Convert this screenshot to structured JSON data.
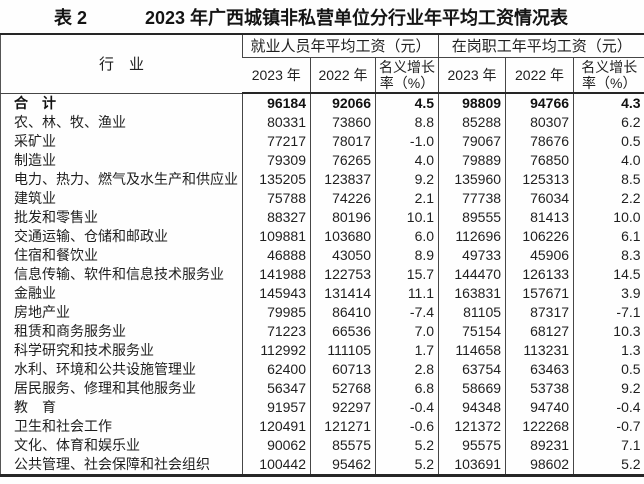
{
  "colors": {
    "background": "#fefefe",
    "text": "#1c1c1c",
    "border": "#464646"
  },
  "title": {
    "table_label": "表 2",
    "text": "2023 年广西城镇非私营单位分行业年平均工资情况表"
  },
  "table": {
    "industry_header": "行　业",
    "groups": [
      {
        "label": "就业人员年平均工资（元）"
      },
      {
        "label": "在岗职工年平均工资（元）"
      }
    ],
    "subheaders": [
      "2023 年",
      "2022 年",
      "名义增长率（%）",
      "2023 年",
      "2022 年",
      "名义增长率（%）"
    ],
    "rows": [
      {
        "industry": "合　计",
        "bold": true,
        "values": [
          "96184",
          "92066",
          "4.5",
          "98809",
          "94766",
          "4.3"
        ]
      },
      {
        "industry": "农、林、牧、渔业",
        "bold": false,
        "values": [
          "80331",
          "73860",
          "8.8",
          "85288",
          "80307",
          "6.2"
        ]
      },
      {
        "industry": "采矿业",
        "bold": false,
        "values": [
          "77217",
          "78017",
          "-1.0",
          "79067",
          "78676",
          "0.5"
        ]
      },
      {
        "industry": "制造业",
        "bold": false,
        "values": [
          "79309",
          "76265",
          "4.0",
          "79889",
          "76850",
          "4.0"
        ]
      },
      {
        "industry": "电力、热力、燃气及水生产和供应业",
        "bold": false,
        "values": [
          "135205",
          "123837",
          "9.2",
          "135960",
          "125313",
          "8.5"
        ]
      },
      {
        "industry": "建筑业",
        "bold": false,
        "values": [
          "75788",
          "74226",
          "2.1",
          "77738",
          "76034",
          "2.2"
        ]
      },
      {
        "industry": "批发和零售业",
        "bold": false,
        "values": [
          "88327",
          "80196",
          "10.1",
          "89555",
          "81413",
          "10.0"
        ]
      },
      {
        "industry": "交通运输、仓储和邮政业",
        "bold": false,
        "values": [
          "109881",
          "103680",
          "6.0",
          "112696",
          "106226",
          "6.1"
        ]
      },
      {
        "industry": "住宿和餐饮业",
        "bold": false,
        "values": [
          "46888",
          "43050",
          "8.9",
          "49733",
          "45906",
          "8.3"
        ]
      },
      {
        "industry": "信息传输、软件和信息技术服务业",
        "bold": false,
        "values": [
          "141988",
          "122753",
          "15.7",
          "144470",
          "126133",
          "14.5"
        ]
      },
      {
        "industry": "金融业",
        "bold": false,
        "values": [
          "145943",
          "131414",
          "11.1",
          "163831",
          "157671",
          "3.9"
        ]
      },
      {
        "industry": "房地产业",
        "bold": false,
        "values": [
          "79985",
          "86410",
          "-7.4",
          "81105",
          "87317",
          "-7.1"
        ]
      },
      {
        "industry": "租赁和商务服务业",
        "bold": false,
        "values": [
          "71223",
          "66536",
          "7.0",
          "75154",
          "68127",
          "10.3"
        ]
      },
      {
        "industry": "科学研究和技术服务业",
        "bold": false,
        "values": [
          "112992",
          "111105",
          "1.7",
          "114658",
          "113231",
          "1.3"
        ]
      },
      {
        "industry": "水利、环境和公共设施管理业",
        "bold": false,
        "values": [
          "62400",
          "60713",
          "2.8",
          "63754",
          "63463",
          "0.5"
        ]
      },
      {
        "industry": "居民服务、修理和其他服务业",
        "bold": false,
        "values": [
          "56347",
          "52768",
          "6.8",
          "58669",
          "53738",
          "9.2"
        ]
      },
      {
        "industry": "教　育",
        "bold": false,
        "values": [
          "91957",
          "92297",
          "-0.4",
          "94348",
          "94740",
          "-0.4"
        ]
      },
      {
        "industry": "卫生和社会工作",
        "bold": false,
        "values": [
          "120491",
          "121271",
          "-0.6",
          "121372",
          "122268",
          "-0.7"
        ]
      },
      {
        "industry": "文化、体育和娱乐业",
        "bold": false,
        "values": [
          "90062",
          "85575",
          "5.2",
          "95575",
          "89231",
          "7.1"
        ]
      },
      {
        "industry": "公共管理、社会保障和社会组织",
        "bold": false,
        "values": [
          "100442",
          "95462",
          "5.2",
          "103691",
          "98602",
          "5.2"
        ]
      }
    ]
  }
}
